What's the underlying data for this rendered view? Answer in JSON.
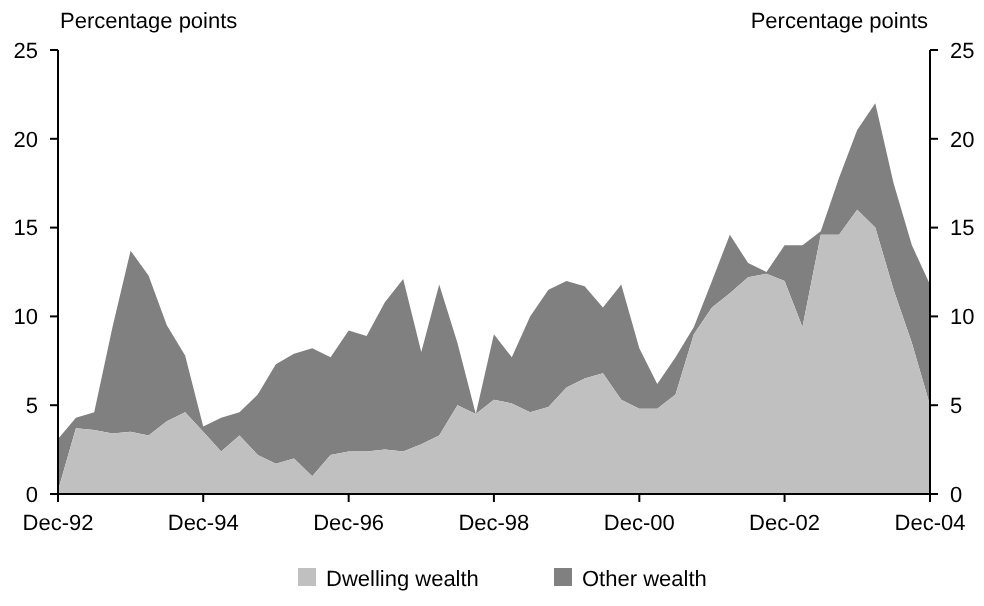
{
  "chart_data": {
    "type": "area",
    "stacked": true,
    "ylabel": "Percentage points",
    "y2label": "Percentage points",
    "x": [
      "1992-12",
      "1993-03",
      "1993-06",
      "1993-09",
      "1993-12",
      "1994-03",
      "1994-06",
      "1994-09",
      "1994-12",
      "1995-03",
      "1995-06",
      "1995-09",
      "1995-12",
      "1996-03",
      "1996-06",
      "1996-09",
      "1996-12",
      "1997-03",
      "1997-06",
      "1997-09",
      "1997-12",
      "1998-03",
      "1998-06",
      "1998-09",
      "1998-12",
      "1999-03",
      "1999-06",
      "1999-09",
      "1999-12",
      "2000-03",
      "2000-06",
      "2000-09",
      "2000-12",
      "2001-03",
      "2001-06",
      "2001-09",
      "2001-12",
      "2002-03",
      "2002-06",
      "2002-09",
      "2002-12",
      "2003-03",
      "2003-06",
      "2003-09",
      "2003-12",
      "2004-03",
      "2004-06",
      "2004-09",
      "2004-12"
    ],
    "series": [
      {
        "name": "Dwelling wealth",
        "color": "#c0c0c0",
        "values": [
          0.2,
          3.7,
          3.6,
          3.4,
          3.5,
          3.3,
          4.1,
          4.6,
          3.5,
          2.4,
          3.3,
          2.2,
          1.7,
          2.0,
          1.0,
          2.2,
          2.4,
          2.4,
          2.5,
          2.4,
          2.8,
          3.3,
          5.0,
          4.5,
          5.3,
          5.1,
          4.6,
          4.9,
          6.0,
          6.5,
          6.8,
          5.3,
          4.8,
          4.8,
          5.6,
          9.0,
          10.5,
          11.3,
          12.2,
          12.4,
          12.0,
          9.4,
          14.6,
          14.6,
          16.0,
          15.0,
          11.5,
          8.5,
          5.0
        ]
      },
      {
        "name": "Other wealth",
        "color": "#808080",
        "values": [
          2.9,
          0.6,
          1.0,
          6.0,
          10.2,
          9.0,
          5.4,
          3.2,
          0.3,
          1.9,
          1.3,
          3.4,
          5.6,
          5.9,
          7.2,
          5.5,
          6.8,
          6.5,
          8.3,
          9.7,
          5.2,
          8.5,
          3.5,
          0.0,
          3.7,
          2.6,
          5.4,
          6.6,
          6.0,
          5.2,
          3.7,
          6.5,
          3.4,
          1.4,
          2.1,
          0.4,
          1.5,
          3.3,
          0.8,
          0.1,
          2.0,
          4.6,
          0.2,
          3.2,
          4.5,
          7.0,
          6.0,
          5.5,
          6.8
        ]
      }
    ],
    "xlim": [
      "1992-12",
      "2004-12"
    ],
    "xticks": [
      {
        "value": "1992-12",
        "label": "Dec-92"
      },
      {
        "value": "1994-12",
        "label": "Dec-94"
      },
      {
        "value": "1996-12",
        "label": "Dec-96"
      },
      {
        "value": "1998-12",
        "label": "Dec-98"
      },
      {
        "value": "2000-12",
        "label": "Dec-00"
      },
      {
        "value": "2002-12",
        "label": "Dec-02"
      },
      {
        "value": "2004-12",
        "label": "Dec-04"
      }
    ],
    "ylim": [
      0,
      25
    ],
    "yticks": [
      0,
      5,
      10,
      15,
      20,
      25
    ],
    "y2lim": [
      0,
      25
    ],
    "y2ticks": [
      0,
      5,
      10,
      15,
      20,
      25
    ],
    "grid": false,
    "legend": "bottom"
  }
}
